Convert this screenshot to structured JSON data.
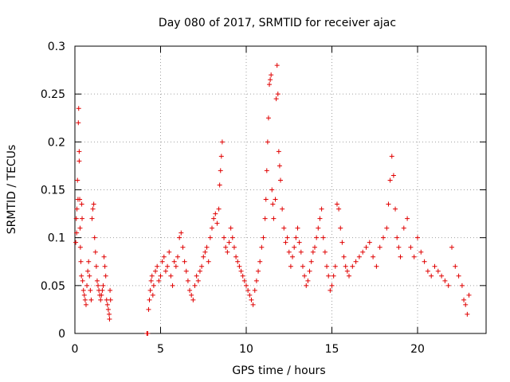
{
  "chart_data": {
    "type": "scatter",
    "title": "Day 080 of 2017, SRMTID for receiver ajac",
    "xlabel": "GPS time / hours",
    "ylabel": "SRMTID / TECUs",
    "xlim": [
      0,
      24
    ],
    "ylim": [
      0,
      0.3
    ],
    "xticks": [
      0,
      5,
      10,
      15,
      20
    ],
    "xtick_labels": [
      "0",
      "5",
      "10",
      "15",
      "20"
    ],
    "yticks": [
      0,
      0.05,
      0.1,
      0.15,
      0.2,
      0.25,
      0.3
    ],
    "ytick_labels": [
      "0",
      "0.05",
      "0.1",
      "0.15",
      "0.2",
      "0.25",
      "0.3"
    ],
    "grid": true,
    "marker": "+",
    "color": "#e00000",
    "series": [
      {
        "name": "SRMTID",
        "points": [
          [
            0.05,
            0.095
          ],
          [
            0.08,
            0.12
          ],
          [
            0.1,
            0.105
          ],
          [
            0.12,
            0.13
          ],
          [
            0.15,
            0.16
          ],
          [
            0.18,
            0.14
          ],
          [
            0.2,
            0.22
          ],
          [
            0.22,
            0.235
          ],
          [
            0.25,
            0.19
          ],
          [
            0.25,
            0.18
          ],
          [
            0.28,
            0.14
          ],
          [
            0.3,
            0.11
          ],
          [
            0.32,
            0.09
          ],
          [
            0.35,
            0.075
          ],
          [
            0.38,
            0.06
          ],
          [
            0.4,
            0.135
          ],
          [
            0.42,
            0.12
          ],
          [
            0.45,
            0.055
          ],
          [
            0.5,
            0.045
          ],
          [
            0.55,
            0.04
          ],
          [
            0.6,
            0.035
          ],
          [
            0.65,
            0.03
          ],
          [
            0.7,
            0.05
          ],
          [
            0.75,
            0.065
          ],
          [
            0.8,
            0.075
          ],
          [
            0.85,
            0.06
          ],
          [
            0.9,
            0.045
          ],
          [
            0.95,
            0.035
          ],
          [
            1.0,
            0.12
          ],
          [
            1.05,
            0.13
          ],
          [
            1.1,
            0.135
          ],
          [
            1.15,
            0.1
          ],
          [
            1.2,
            0.085
          ],
          [
            1.25,
            0.07
          ],
          [
            1.3,
            0.055
          ],
          [
            1.35,
            0.05
          ],
          [
            1.4,
            0.045
          ],
          [
            1.45,
            0.04
          ],
          [
            1.5,
            0.035
          ],
          [
            1.55,
            0.04
          ],
          [
            1.6,
            0.045
          ],
          [
            1.65,
            0.05
          ],
          [
            1.7,
            0.08
          ],
          [
            1.75,
            0.07
          ],
          [
            1.8,
            0.06
          ],
          [
            1.85,
            0.035
          ],
          [
            1.9,
            0.03
          ],
          [
            1.95,
            0.025
          ],
          [
            2.0,
            0.02
          ],
          [
            2.02,
            0.015
          ],
          [
            2.05,
            0.045
          ],
          [
            2.08,
            0.035
          ],
          [
            4.2,
            0.0
          ],
          [
            4.25,
            0.0
          ],
          [
            4.3,
            0.025
          ],
          [
            4.35,
            0.035
          ],
          [
            4.4,
            0.045
          ],
          [
            4.45,
            0.055
          ],
          [
            4.5,
            0.06
          ],
          [
            4.55,
            0.04
          ],
          [
            4.6,
            0.05
          ],
          [
            4.7,
            0.065
          ],
          [
            4.8,
            0.07
          ],
          [
            4.9,
            0.055
          ],
          [
            5.0,
            0.06
          ],
          [
            5.1,
            0.075
          ],
          [
            5.2,
            0.08
          ],
          [
            5.3,
            0.065
          ],
          [
            5.4,
            0.07
          ],
          [
            5.5,
            0.085
          ],
          [
            5.6,
            0.06
          ],
          [
            5.7,
            0.05
          ],
          [
            5.8,
            0.075
          ],
          [
            5.9,
            0.07
          ],
          [
            6.0,
            0.08
          ],
          [
            6.1,
            0.1
          ],
          [
            6.2,
            0.105
          ],
          [
            6.3,
            0.09
          ],
          [
            6.4,
            0.075
          ],
          [
            6.5,
            0.065
          ],
          [
            6.6,
            0.055
          ],
          [
            6.7,
            0.045
          ],
          [
            6.8,
            0.04
          ],
          [
            6.9,
            0.035
          ],
          [
            7.0,
            0.05
          ],
          [
            7.1,
            0.06
          ],
          [
            7.2,
            0.055
          ],
          [
            7.3,
            0.065
          ],
          [
            7.4,
            0.07
          ],
          [
            7.5,
            0.08
          ],
          [
            7.6,
            0.085
          ],
          [
            7.7,
            0.09
          ],
          [
            7.8,
            0.075
          ],
          [
            7.9,
            0.1
          ],
          [
            8.0,
            0.11
          ],
          [
            8.1,
            0.12
          ],
          [
            8.2,
            0.125
          ],
          [
            8.3,
            0.115
          ],
          [
            8.4,
            0.13
          ],
          [
            8.45,
            0.155
          ],
          [
            8.5,
            0.17
          ],
          [
            8.55,
            0.185
          ],
          [
            8.6,
            0.2
          ],
          [
            8.7,
            0.1
          ],
          [
            8.8,
            0.09
          ],
          [
            8.9,
            0.085
          ],
          [
            9.0,
            0.095
          ],
          [
            9.1,
            0.11
          ],
          [
            9.2,
            0.1
          ],
          [
            9.3,
            0.09
          ],
          [
            9.4,
            0.08
          ],
          [
            9.5,
            0.075
          ],
          [
            9.6,
            0.07
          ],
          [
            9.7,
            0.065
          ],
          [
            9.8,
            0.06
          ],
          [
            9.9,
            0.055
          ],
          [
            10.0,
            0.05
          ],
          [
            10.1,
            0.045
          ],
          [
            10.2,
            0.04
          ],
          [
            10.3,
            0.035
          ],
          [
            10.4,
            0.03
          ],
          [
            10.5,
            0.045
          ],
          [
            10.6,
            0.055
          ],
          [
            10.7,
            0.065
          ],
          [
            10.8,
            0.075
          ],
          [
            10.9,
            0.09
          ],
          [
            11.0,
            0.1
          ],
          [
            11.1,
            0.12
          ],
          [
            11.15,
            0.14
          ],
          [
            11.2,
            0.17
          ],
          [
            11.25,
            0.2
          ],
          [
            11.3,
            0.225
          ],
          [
            11.35,
            0.26
          ],
          [
            11.4,
            0.265
          ],
          [
            11.45,
            0.27
          ],
          [
            11.5,
            0.15
          ],
          [
            11.55,
            0.135
          ],
          [
            11.6,
            0.12
          ],
          [
            11.7,
            0.14
          ],
          [
            11.75,
            0.245
          ],
          [
            11.8,
            0.28
          ],
          [
            11.85,
            0.25
          ],
          [
            11.9,
            0.19
          ],
          [
            11.95,
            0.175
          ],
          [
            12.0,
            0.16
          ],
          [
            12.1,
            0.13
          ],
          [
            12.2,
            0.11
          ],
          [
            12.3,
            0.095
          ],
          [
            12.4,
            0.1
          ],
          [
            12.5,
            0.085
          ],
          [
            12.6,
            0.07
          ],
          [
            12.7,
            0.08
          ],
          [
            12.8,
            0.09
          ],
          [
            12.9,
            0.1
          ],
          [
            13.0,
            0.11
          ],
          [
            13.1,
            0.095
          ],
          [
            13.2,
            0.085
          ],
          [
            13.3,
            0.07
          ],
          [
            13.4,
            0.06
          ],
          [
            13.5,
            0.05
          ],
          [
            13.6,
            0.055
          ],
          [
            13.7,
            0.065
          ],
          [
            13.8,
            0.075
          ],
          [
            13.9,
            0.085
          ],
          [
            14.0,
            0.09
          ],
          [
            14.1,
            0.1
          ],
          [
            14.2,
            0.11
          ],
          [
            14.3,
            0.12
          ],
          [
            14.4,
            0.13
          ],
          [
            14.5,
            0.1
          ],
          [
            14.6,
            0.085
          ],
          [
            14.7,
            0.07
          ],
          [
            14.8,
            0.06
          ],
          [
            14.9,
            0.045
          ],
          [
            15.0,
            0.05
          ],
          [
            15.1,
            0.06
          ],
          [
            15.2,
            0.07
          ],
          [
            15.3,
            0.135
          ],
          [
            15.4,
            0.13
          ],
          [
            15.5,
            0.11
          ],
          [
            15.6,
            0.095
          ],
          [
            15.7,
            0.08
          ],
          [
            15.8,
            0.07
          ],
          [
            15.9,
            0.065
          ],
          [
            16.0,
            0.06
          ],
          [
            16.2,
            0.07
          ],
          [
            16.4,
            0.075
          ],
          [
            16.6,
            0.08
          ],
          [
            16.8,
            0.085
          ],
          [
            17.0,
            0.09
          ],
          [
            17.2,
            0.095
          ],
          [
            17.4,
            0.08
          ],
          [
            17.6,
            0.07
          ],
          [
            17.8,
            0.09
          ],
          [
            18.0,
            0.1
          ],
          [
            18.2,
            0.11
          ],
          [
            18.3,
            0.135
          ],
          [
            18.4,
            0.16
          ],
          [
            18.5,
            0.185
          ],
          [
            18.6,
            0.165
          ],
          [
            18.7,
            0.13
          ],
          [
            18.8,
            0.1
          ],
          [
            18.9,
            0.09
          ],
          [
            19.0,
            0.08
          ],
          [
            19.2,
            0.11
          ],
          [
            19.4,
            0.12
          ],
          [
            19.6,
            0.09
          ],
          [
            19.8,
            0.08
          ],
          [
            20.0,
            0.1
          ],
          [
            20.2,
            0.085
          ],
          [
            20.4,
            0.075
          ],
          [
            20.6,
            0.065
          ],
          [
            20.8,
            0.06
          ],
          [
            21.0,
            0.07
          ],
          [
            21.2,
            0.065
          ],
          [
            21.4,
            0.06
          ],
          [
            21.6,
            0.055
          ],
          [
            21.8,
            0.05
          ],
          [
            22.0,
            0.09
          ],
          [
            22.2,
            0.07
          ],
          [
            22.4,
            0.06
          ],
          [
            22.6,
            0.05
          ],
          [
            22.7,
            0.035
          ],
          [
            22.8,
            0.03
          ],
          [
            22.9,
            0.02
          ],
          [
            23.0,
            0.04
          ]
        ]
      }
    ]
  }
}
